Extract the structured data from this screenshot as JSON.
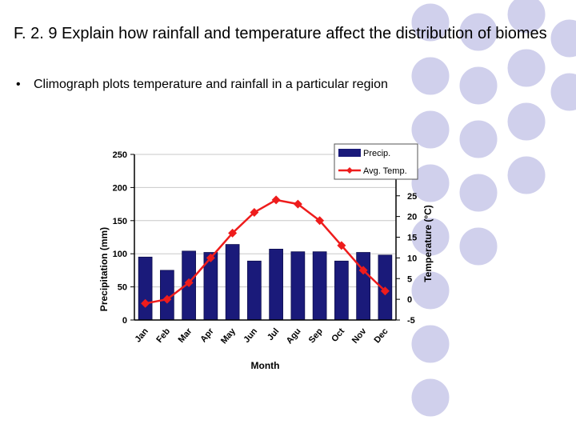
{
  "slide": {
    "title": "F. 2. 9 Explain how rainfall and temperature affect the distribution of biomes",
    "bullet_symbol": "•",
    "bullet": "Climograph plots temperature and rainfall in a particular region"
  },
  "colors": {
    "bar": "#1a1a7a",
    "line": "#ee1c1c",
    "circle_fill": "#d0d0ec",
    "circle_stroke": "#ffffff"
  },
  "chart_data": {
    "type": "bar+line",
    "categories": [
      "Jan",
      "Feb",
      "Mar",
      "Apr",
      "May",
      "Jun",
      "Jul",
      "Agu",
      "Sep",
      "Oct",
      "Nov",
      "Dec"
    ],
    "series": [
      {
        "name": "Precip.",
        "type": "bar",
        "axis": "left",
        "values": [
          95,
          75,
          104,
          102,
          114,
          89,
          107,
          103,
          103,
          89,
          102,
          98
        ]
      },
      {
        "name": "Avg. Temp.",
        "type": "line",
        "axis": "right",
        "values": [
          -1,
          0,
          4,
          10,
          16,
          21,
          24,
          23,
          19,
          13,
          7,
          2
        ]
      }
    ],
    "xlabel": "Month",
    "ylabel": "Precipitation (mm)",
    "y2label": "Temperature (°C)",
    "ylim": [
      0,
      250
    ],
    "yticks": [
      0,
      50,
      100,
      150,
      200,
      250
    ],
    "y2lim": [
      -5,
      35
    ],
    "y2ticks": [
      -5,
      0,
      5,
      10,
      15,
      20,
      25
    ],
    "legend_position": "top-right"
  }
}
